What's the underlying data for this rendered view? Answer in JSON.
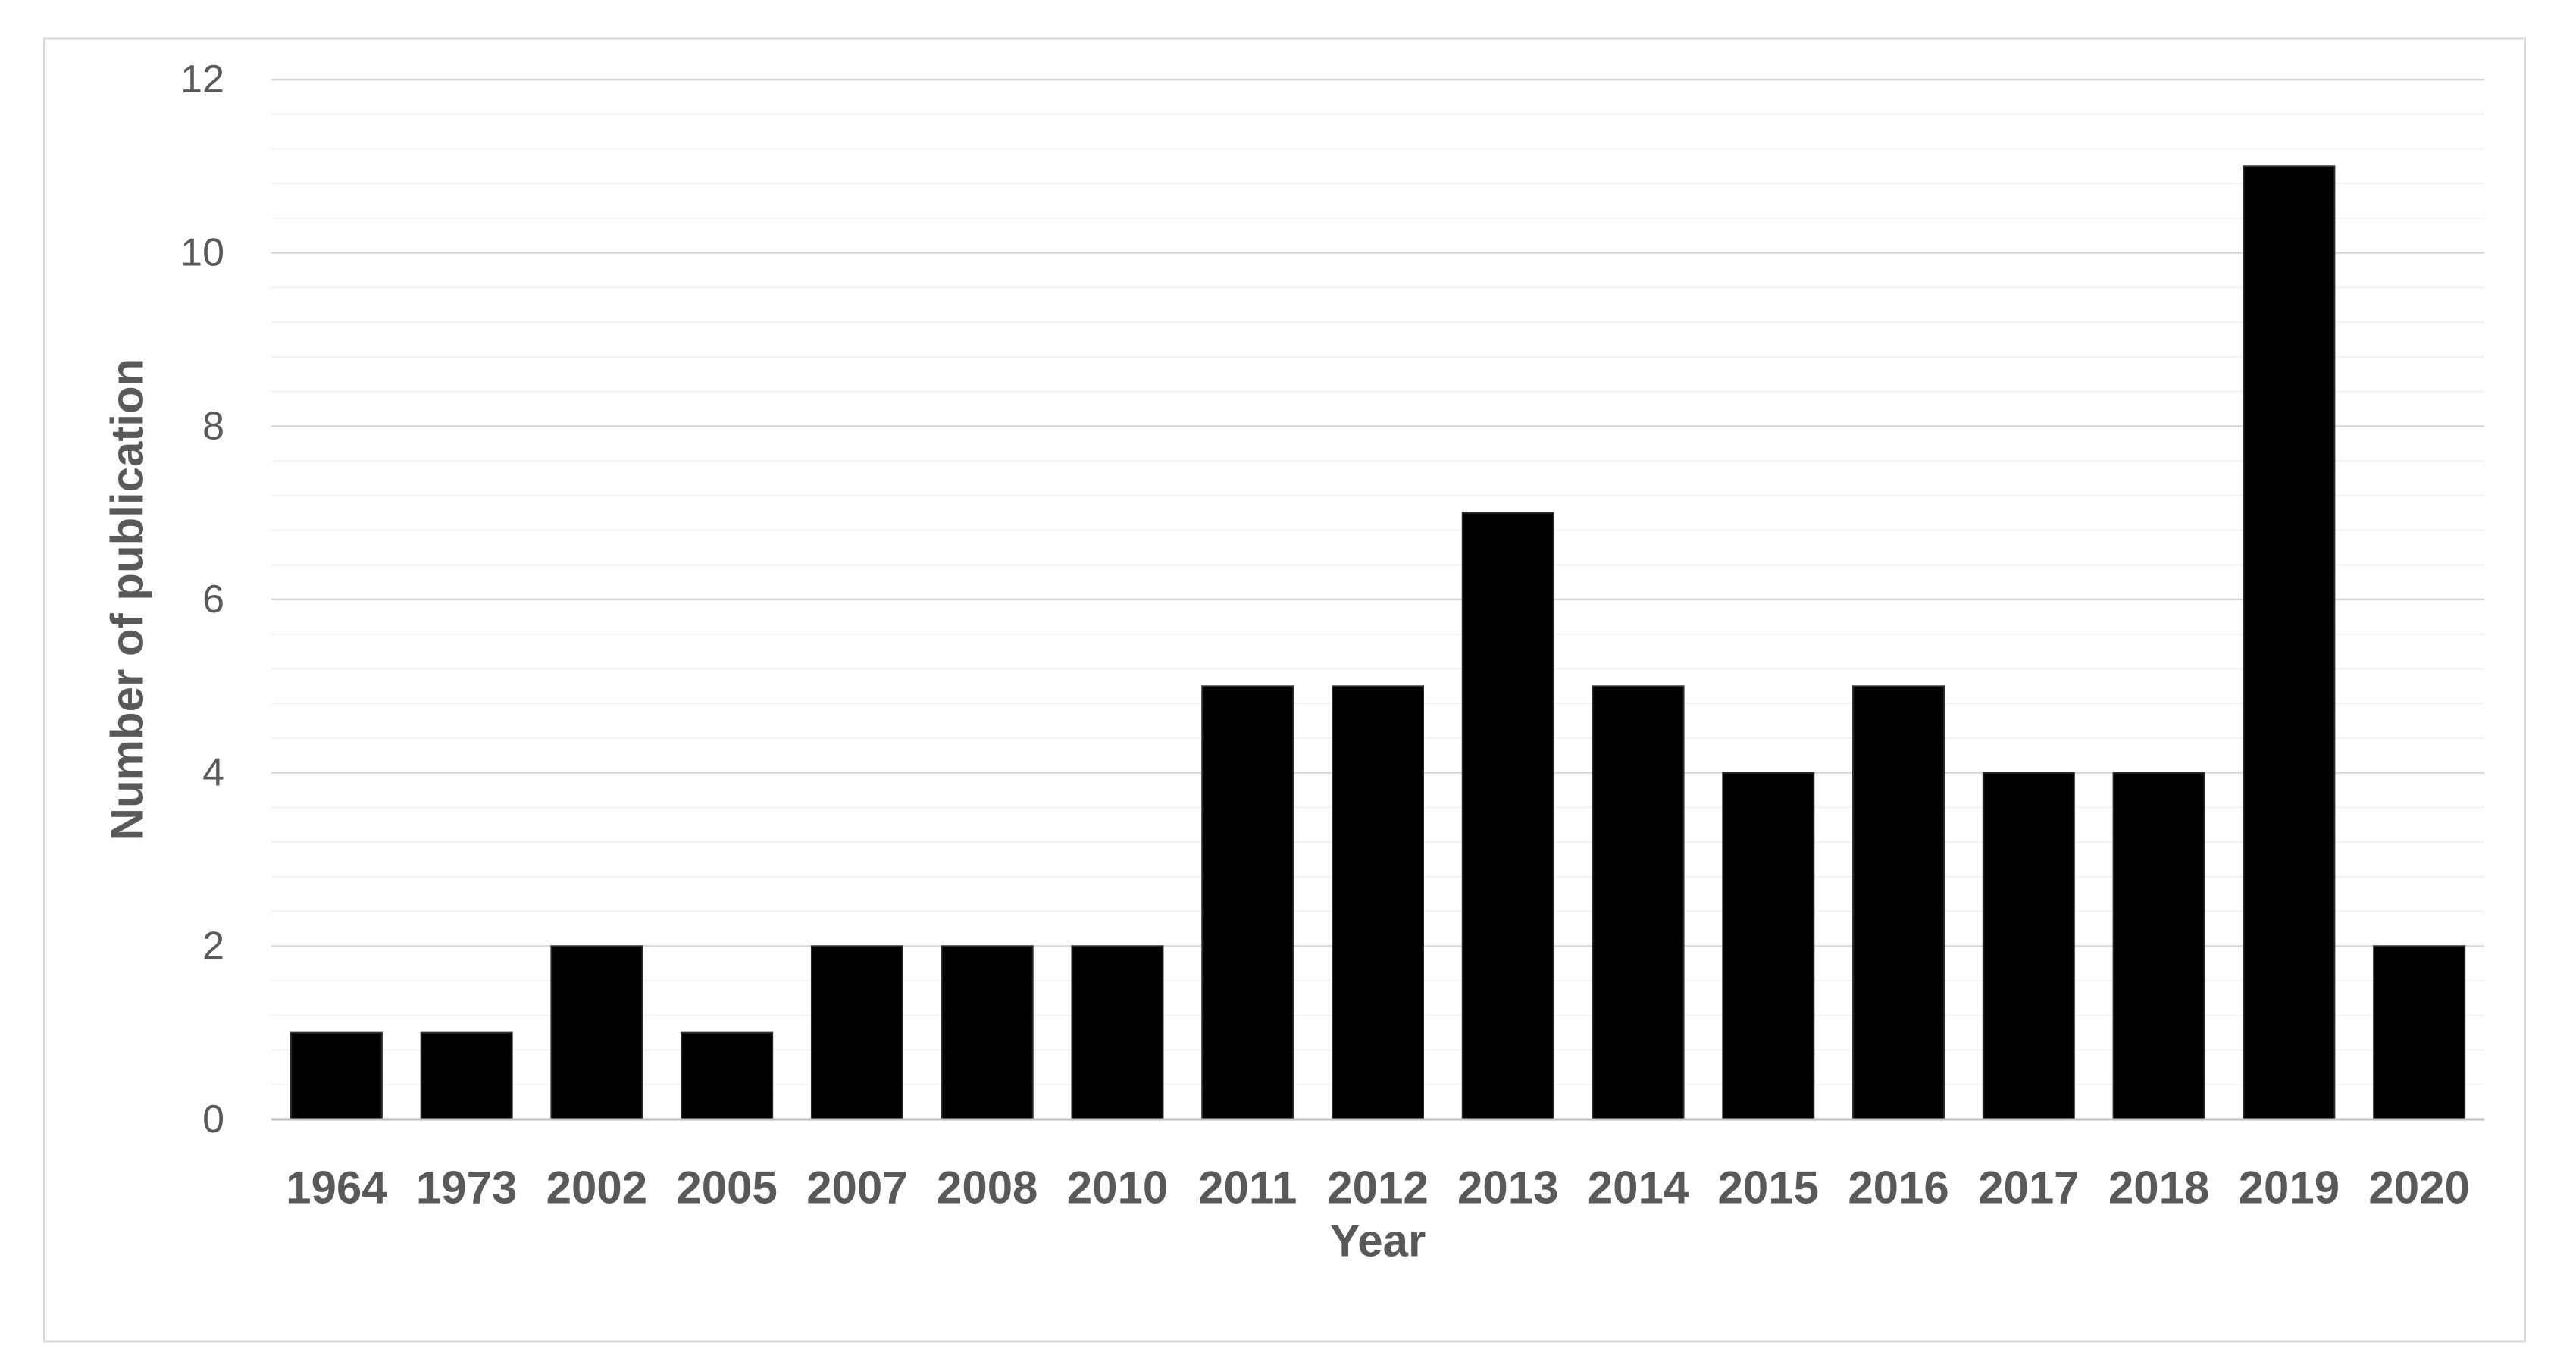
{
  "chart_data": {
    "type": "bar",
    "title": "",
    "xlabel": "Year",
    "ylabel": "Number of publication",
    "categories": [
      "1964",
      "1973",
      "2002",
      "2005",
      "2007",
      "2008",
      "2010",
      "2011",
      "2012",
      "2013",
      "2014",
      "2015",
      "2016",
      "2017",
      "2018",
      "2019",
      "2020"
    ],
    "values": [
      1,
      1,
      2,
      1,
      2,
      2,
      2,
      5,
      5,
      7,
      5,
      4,
      5,
      4,
      4,
      11,
      2
    ],
    "series_name": "Number of publication",
    "ylim": [
      0,
      12
    ],
    "y_major_ticks": [
      0,
      2,
      4,
      6,
      8,
      10,
      12
    ],
    "y_minor_step": 0.4,
    "grid": true,
    "legend_position": "none",
    "colors": {
      "bar_fill": "#000000",
      "bar_border": "#2b2b2b",
      "axis_line": "#bfbfbf",
      "major_gridline": "#d9d9d9",
      "minor_gridline": "#f2f2f2",
      "tick_label": "#595959",
      "axis_title": "#595959",
      "figure_border": "#d9d9d9",
      "background": "#ffffff"
    }
  }
}
